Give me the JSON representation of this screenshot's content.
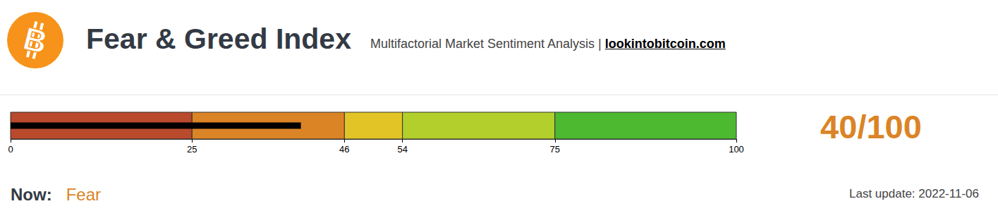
{
  "chart_data": {
    "type": "bullet",
    "logo": "B",
    "title": "Fear & Greed Index",
    "subtitle": "Multifactorial Market Sentiment Analysis |",
    "source": "lookintobitcoin.com",
    "orientation": "horizontal",
    "value": 40,
    "value_label": "40/100",
    "color": "#000000",
    "label_color": "#db8426",
    "xlim": [
      0,
      100
    ],
    "xticks": [
      0,
      25,
      46,
      54,
      75,
      100
    ],
    "bands": [
      {
        "from": 0,
        "to": 25,
        "color": "#b94a2c"
      },
      {
        "from": 25,
        "to": 46,
        "color": "#db8426"
      },
      {
        "from": 46,
        "to": 54,
        "color": "#e2c427"
      },
      {
        "from": 54,
        "to": 75,
        "color": "#b2cf2b"
      },
      {
        "from": 75,
        "to": 100,
        "color": "#4cb930"
      }
    ],
    "status_label": "Now:",
    "status": "Fear",
    "update": "Last update: 2022-11-06",
    "grid": false
  }
}
